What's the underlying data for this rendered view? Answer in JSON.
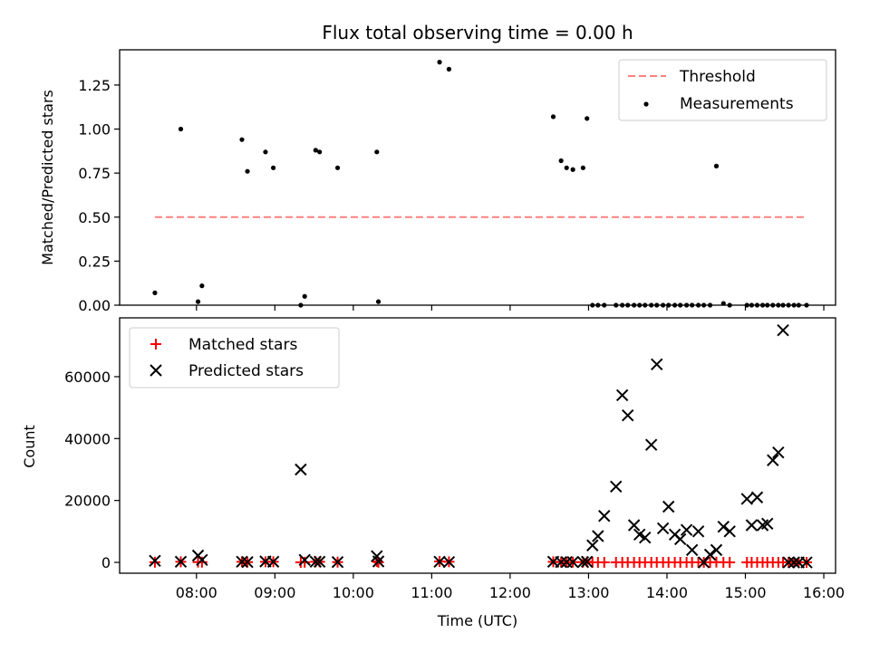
{
  "chart_data": [
    {
      "type": "scatter",
      "title": "Flux total observing time = 0.00 h",
      "xlabel": "",
      "ylabel": "Matched/Predicted stars",
      "xlim": [
        7.02,
        16.15
      ],
      "ylim": [
        0.0,
        1.45
      ],
      "yticks": [
        0.0,
        0.25,
        0.5,
        0.75,
        1.0,
        1.25
      ],
      "ytick_labels": [
        "0.00",
        "0.25",
        "0.50",
        "0.75",
        "1.00",
        "1.25"
      ],
      "legend": {
        "position": "top-right",
        "entries": [
          "Threshold",
          "Measurements"
        ]
      },
      "threshold": {
        "name": "Threshold",
        "value": 0.5,
        "x_range": [
          7.47,
          15.78
        ],
        "color": "#ff8080"
      },
      "measurements": {
        "name": "Measurements",
        "color": "#000000",
        "x": [
          7.47,
          7.8,
          8.02,
          8.07,
          8.58,
          8.65,
          8.88,
          8.98,
          9.33,
          9.38,
          9.52,
          9.57,
          9.8,
          10.3,
          10.32,
          11.1,
          11.22,
          12.55,
          12.65,
          12.72,
          12.8,
          12.93,
          12.98,
          13.05,
          13.12,
          13.2,
          13.35,
          13.43,
          13.5,
          13.58,
          13.65,
          13.72,
          13.8,
          13.87,
          13.95,
          14.02,
          14.1,
          14.17,
          14.25,
          14.32,
          14.4,
          14.47,
          14.55,
          14.63,
          14.72,
          14.8,
          15.02,
          15.08,
          15.15,
          15.22,
          15.28,
          15.35,
          15.42,
          15.48,
          15.55,
          15.62,
          15.68,
          15.78
        ],
        "y": [
          0.07,
          1.0,
          0.02,
          0.11,
          0.94,
          0.76,
          0.87,
          0.78,
          0.0,
          0.05,
          0.88,
          0.87,
          0.78,
          0.87,
          0.02,
          1.38,
          1.34,
          1.07,
          0.82,
          0.78,
          0.77,
          0.78,
          1.06,
          0.0,
          0.0,
          0.0,
          0.0,
          0.0,
          0.0,
          0.0,
          0.0,
          0.0,
          0.0,
          0.0,
          0.0,
          0.0,
          0.0,
          0.0,
          0.0,
          0.0,
          0.0,
          0.0,
          0.0,
          0.79,
          0.01,
          0.0,
          0.0,
          0.0,
          0.0,
          0.0,
          0.0,
          0.0,
          0.0,
          0.0,
          0.0,
          0.0,
          0.0,
          0.0
        ]
      }
    },
    {
      "type": "scatter",
      "title": "",
      "xlabel": "Time (UTC)",
      "ylabel": "Count",
      "xlim": [
        7.02,
        16.15
      ],
      "ylim": [
        -3500,
        79000
      ],
      "yticks": [
        0,
        20000,
        40000,
        60000
      ],
      "ytick_labels": [
        "0",
        "20000",
        "40000",
        "60000"
      ],
      "xticks": [
        8,
        9,
        10,
        11,
        12,
        13,
        14,
        15,
        16
      ],
      "xtick_labels": [
        "08:00",
        "09:00",
        "10:00",
        "11:00",
        "12:00",
        "13:00",
        "14:00",
        "15:00",
        "16:00"
      ],
      "legend": {
        "position": "top-left",
        "entries": [
          "Matched stars",
          "Predicted stars"
        ]
      },
      "matched": {
        "name": "Matched stars",
        "color": "#ff0000",
        "x": [
          7.47,
          7.8,
          8.02,
          8.07,
          8.58,
          8.65,
          8.88,
          8.98,
          9.33,
          9.38,
          9.52,
          9.57,
          9.8,
          10.3,
          10.32,
          11.1,
          11.22,
          12.55,
          12.65,
          12.72,
          12.8,
          12.93,
          12.98,
          13.05,
          13.12,
          13.2,
          13.35,
          13.43,
          13.5,
          13.58,
          13.65,
          13.72,
          13.8,
          13.87,
          13.95,
          14.02,
          14.1,
          14.17,
          14.25,
          14.32,
          14.4,
          14.47,
          14.55,
          14.63,
          14.72,
          14.8,
          15.02,
          15.08,
          15.15,
          15.22,
          15.28,
          15.35,
          15.42,
          15.48,
          15.55,
          15.62,
          15.68,
          15.78
        ],
        "y": [
          30,
          200,
          100,
          100,
          200,
          100,
          200,
          200,
          0,
          50,
          200,
          200,
          100,
          300,
          50,
          300,
          200,
          200,
          100,
          100,
          100,
          100,
          200,
          0,
          0,
          0,
          0,
          0,
          0,
          0,
          0,
          0,
          0,
          0,
          0,
          0,
          0,
          0,
          0,
          0,
          0,
          0,
          0,
          100,
          0,
          0,
          0,
          0,
          0,
          0,
          0,
          0,
          0,
          0,
          0,
          0,
          0,
          0
        ]
      },
      "predicted": {
        "name": "Predicted stars",
        "color": "#000000",
        "x": [
          7.47,
          7.8,
          8.02,
          8.07,
          8.58,
          8.65,
          8.88,
          8.98,
          9.33,
          9.38,
          9.52,
          9.57,
          9.8,
          10.3,
          10.32,
          11.1,
          11.22,
          12.55,
          12.65,
          12.72,
          12.8,
          12.93,
          12.98,
          13.05,
          13.12,
          13.2,
          13.35,
          13.43,
          13.5,
          13.58,
          13.65,
          13.72,
          13.8,
          13.87,
          13.95,
          14.02,
          14.1,
          14.17,
          14.25,
          14.32,
          14.4,
          14.47,
          14.55,
          14.63,
          14.72,
          14.8,
          15.02,
          15.08,
          15.15,
          15.22,
          15.28,
          15.35,
          15.42,
          15.48,
          15.55,
          15.62,
          15.68,
          15.78
        ],
        "y": [
          500,
          200,
          2200,
          800,
          200,
          100,
          300,
          200,
          30000,
          800,
          200,
          200,
          100,
          2000,
          300,
          200,
          100,
          200,
          100,
          100,
          100,
          100,
          200,
          5500,
          8500,
          15000,
          24500,
          54000,
          47500,
          12000,
          9000,
          8000,
          38000,
          64000,
          11000,
          18000,
          9000,
          7500,
          10500,
          4000,
          10000,
          0,
          2500,
          4000,
          11500,
          10000,
          20500,
          12000,
          21000,
          12000,
          12500,
          33000,
          35500,
          75000,
          0,
          0,
          0,
          0
        ]
      }
    }
  ]
}
